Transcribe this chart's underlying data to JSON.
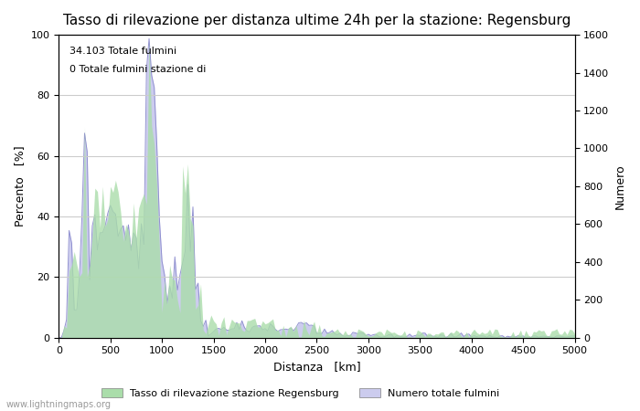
{
  "title": "Tasso di rilevazione per distanza ultime 24h per la stazione: Regensburg",
  "xlabel": "Distanza   [km]",
  "ylabel_left": "Percento   [%]",
  "ylabel_right": "Numero",
  "annotation_line1": "34.103 Totale fulmini",
  "annotation_line2": "0 Totale fulmini stazione di",
  "xlim": [
    0,
    5000
  ],
  "ylim_left": [
    0,
    100
  ],
  "ylim_right": [
    0,
    1600
  ],
  "xticks": [
    0,
    500,
    1000,
    1500,
    2000,
    2500,
    3000,
    3500,
    4000,
    4500,
    5000
  ],
  "yticks_left": [
    0,
    20,
    40,
    60,
    80,
    100
  ],
  "yticks_right": [
    0,
    200,
    400,
    600,
    800,
    1000,
    1200,
    1400,
    1600
  ],
  "legend_label_green": "Tasso di rilevazione stazione Regensburg",
  "legend_label_blue": "Numero totale fulmini",
  "line_color": "#8888cc",
  "fill_blue_color": "#ccccee",
  "fill_green_color": "#aaddaa",
  "background_color": "#ffffff",
  "grid_color": "#cccccc",
  "watermark": "www.lightningmaps.org",
  "title_fontsize": 11,
  "axis_fontsize": 9,
  "tick_fontsize": 8
}
